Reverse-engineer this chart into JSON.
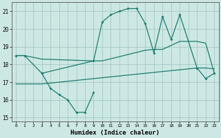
{
  "color": "#1a7a6e",
  "bg_color": "#cde8e4",
  "grid_color": "#a8ccc8",
  "ylim": [
    14.8,
    21.5
  ],
  "xlim": [
    -0.5,
    23.5
  ],
  "yticks": [
    15,
    16,
    17,
    18,
    19,
    20,
    21
  ],
  "xticks": [
    0,
    1,
    2,
    3,
    4,
    5,
    6,
    7,
    8,
    9,
    10,
    11,
    12,
    13,
    14,
    15,
    16,
    17,
    18,
    19,
    20,
    21,
    22,
    23
  ],
  "xlabel": "Humidex (Indice chaleur)",
  "line_jagged_x": [
    0,
    1,
    3,
    9,
    10,
    11,
    12,
    13,
    14,
    15,
    16,
    17,
    18,
    19,
    21,
    22,
    23
  ],
  "line_jagged_y": [
    18.5,
    18.5,
    17.5,
    18.2,
    20.4,
    20.8,
    21.0,
    21.15,
    21.15,
    20.3,
    18.65,
    20.7,
    19.4,
    20.8,
    17.8,
    17.2,
    17.5
  ],
  "line_dip_x": [
    3,
    4,
    5,
    6,
    7,
    8,
    9
  ],
  "line_dip_y": [
    17.5,
    16.65,
    16.3,
    16.0,
    15.3,
    15.3,
    16.4
  ],
  "line_upper_x": [
    0,
    1,
    3,
    9,
    10,
    15,
    16,
    17,
    19,
    21,
    22,
    23
  ],
  "line_upper_y": [
    18.5,
    18.5,
    18.3,
    18.2,
    18.2,
    18.8,
    18.85,
    18.85,
    19.3,
    19.3,
    19.2,
    17.5
  ],
  "line_lower_x": [
    0,
    1,
    2,
    3,
    4,
    5,
    6,
    7,
    8,
    9,
    10,
    11,
    12,
    13,
    14,
    15,
    16,
    17,
    18,
    19,
    20,
    21,
    22,
    23
  ],
  "line_lower_y": [
    16.9,
    16.9,
    16.9,
    16.9,
    16.95,
    17.0,
    17.05,
    17.1,
    17.15,
    17.2,
    17.25,
    17.3,
    17.35,
    17.4,
    17.45,
    17.5,
    17.55,
    17.6,
    17.65,
    17.7,
    17.75,
    17.8,
    17.8,
    17.75
  ]
}
